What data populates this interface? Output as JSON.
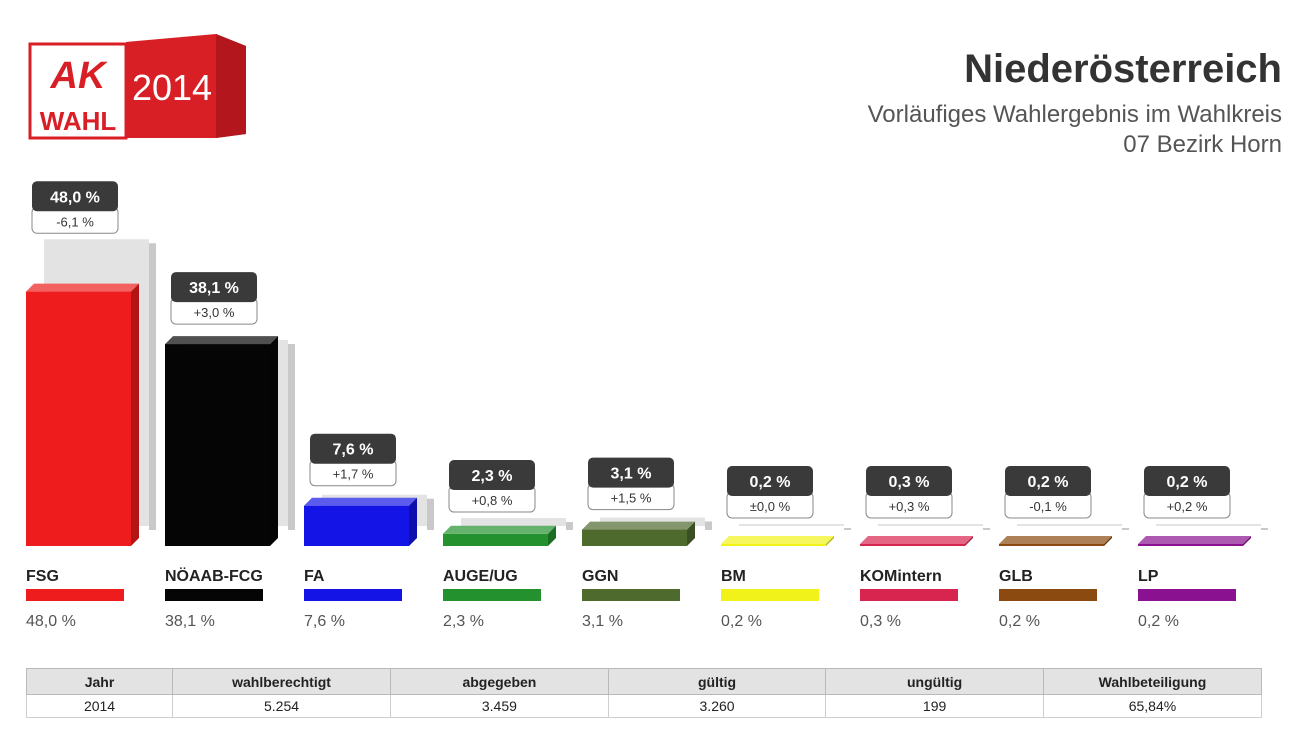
{
  "logo": {
    "brand_top": "AK",
    "brand_bottom": "WAHL",
    "year": "2014"
  },
  "header": {
    "region": "Niederösterreich",
    "subtitle": "Vorläufiges Wahlergebnis im Wahlkreis",
    "district": "07 Bezirk Horn"
  },
  "chart_data": {
    "type": "bar",
    "categories": [
      "FSG",
      "NÖAAB-FCG",
      "FA",
      "AUGE/UG",
      "GGN",
      "BM",
      "KOMintern",
      "GLB",
      "LP"
    ],
    "values": [
      48.0,
      38.1,
      7.6,
      2.3,
      3.1,
      0.2,
      0.3,
      0.2,
      0.2
    ],
    "previous_values": [
      54.1,
      35.1,
      5.9,
      1.5,
      1.6,
      0.2,
      0.0,
      0.3,
      0.0
    ],
    "value_labels": [
      "48,0 %",
      "38,1 %",
      "7,6 %",
      "2,3 %",
      "3,1 %",
      "0,2 %",
      "0,3 %",
      "0,2 %",
      "0,2 %"
    ],
    "change_labels": [
      "-6,1 %",
      "+3,0 %",
      "+1,7 %",
      "+0,8 %",
      "+1,5 %",
      "±0,0 %",
      "+0,3 %",
      "-0,1 %",
      "+0,2 %"
    ],
    "legend_values": [
      "48,0 %",
      "38,1 %",
      "7,6 %",
      "2,3 %",
      "3,1 %",
      "0,2 %",
      "0,3 %",
      "0,2 %",
      "0,2 %"
    ],
    "colors": [
      "#ee1c1c",
      "#050505",
      "#1414e6",
      "#23912d",
      "#4f6a2d",
      "#f2f21b",
      "#d8254f",
      "#8a4a10",
      "#8a118f"
    ],
    "ylim": [
      0,
      60
    ]
  },
  "table": {
    "headers": [
      "Jahr",
      "wahlberechtigt",
      "abgegeben",
      "gültig",
      "ungültig",
      "Wahlbeteiligung"
    ],
    "rows": [
      [
        "2014",
        "5.254",
        "3.459",
        "3.260",
        "199",
        "65,84%"
      ]
    ]
  }
}
